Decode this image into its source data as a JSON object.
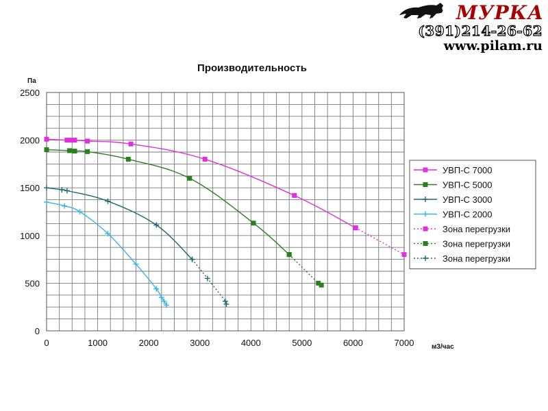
{
  "brand": {
    "name": "МУРКА",
    "phone": "(391)214-26-62",
    "site": "www.pilam.ru"
  },
  "chart_data": {
    "type": "line",
    "title": "Производительность",
    "xlabel": "м3/час",
    "ylabel": "Па",
    "xlim": [
      0,
      7000
    ],
    "ylim": [
      0,
      2500
    ],
    "x_ticks": [
      0,
      1000,
      2000,
      3000,
      4000,
      5000,
      6000,
      7000
    ],
    "y_ticks": [
      0,
      500,
      1000,
      1500,
      2000,
      2500
    ],
    "grid": true,
    "legend_position": "right",
    "series": [
      {
        "name": "УВП-С 7000",
        "color": "#e02ee0",
        "marker": "square",
        "dash": false,
        "x": [
          0,
          400,
          450,
          550,
          800,
          1650,
          3100,
          4850,
          6050
        ],
        "y": [
          2010,
          2000,
          2000,
          2000,
          1990,
          1960,
          1800,
          1420,
          1080
        ]
      },
      {
        "name": "УВП-С 5000",
        "color": "#2a7f1e",
        "marker": "square",
        "dash": false,
        "x": [
          0,
          450,
          550,
          800,
          1600,
          2800,
          4050,
          4750
        ],
        "y": [
          1900,
          1890,
          1885,
          1880,
          1800,
          1600,
          1130,
          800
        ]
      },
      {
        "name": "УВП-С 3000",
        "color": "#1a6a6f",
        "marker": "plus",
        "dash": false,
        "x": [
          0,
          300,
          400,
          1200,
          2150,
          2850
        ],
        "y": [
          1500,
          1480,
          1470,
          1360,
          1110,
          750
        ]
      },
      {
        "name": "УВП-С 2000",
        "color": "#36b4e8",
        "marker": "plus",
        "dash": false,
        "x": [
          0,
          350,
          650,
          1200,
          1750,
          2150,
          2250,
          2300,
          2350
        ],
        "y": [
          1350,
          1310,
          1250,
          1020,
          700,
          440,
          350,
          310,
          270
        ]
      },
      {
        "name": "Зона перегрузки",
        "color": "#e02ee0",
        "marker": "square",
        "dash": true,
        "x": [
          6050,
          7000
        ],
        "y": [
          1080,
          800
        ]
      },
      {
        "name": "Зона перегрузки",
        "color": "#2a7f1e",
        "marker": "square",
        "dash": true,
        "x": [
          4750,
          5320,
          5380
        ],
        "y": [
          800,
          500,
          480
        ]
      },
      {
        "name": "Зона перегрузки",
        "color": "#1a6a6f",
        "marker": "plus",
        "dash": true,
        "x": [
          2850,
          3150,
          3500,
          3520
        ],
        "y": [
          750,
          550,
          310,
          280
        ]
      }
    ]
  }
}
